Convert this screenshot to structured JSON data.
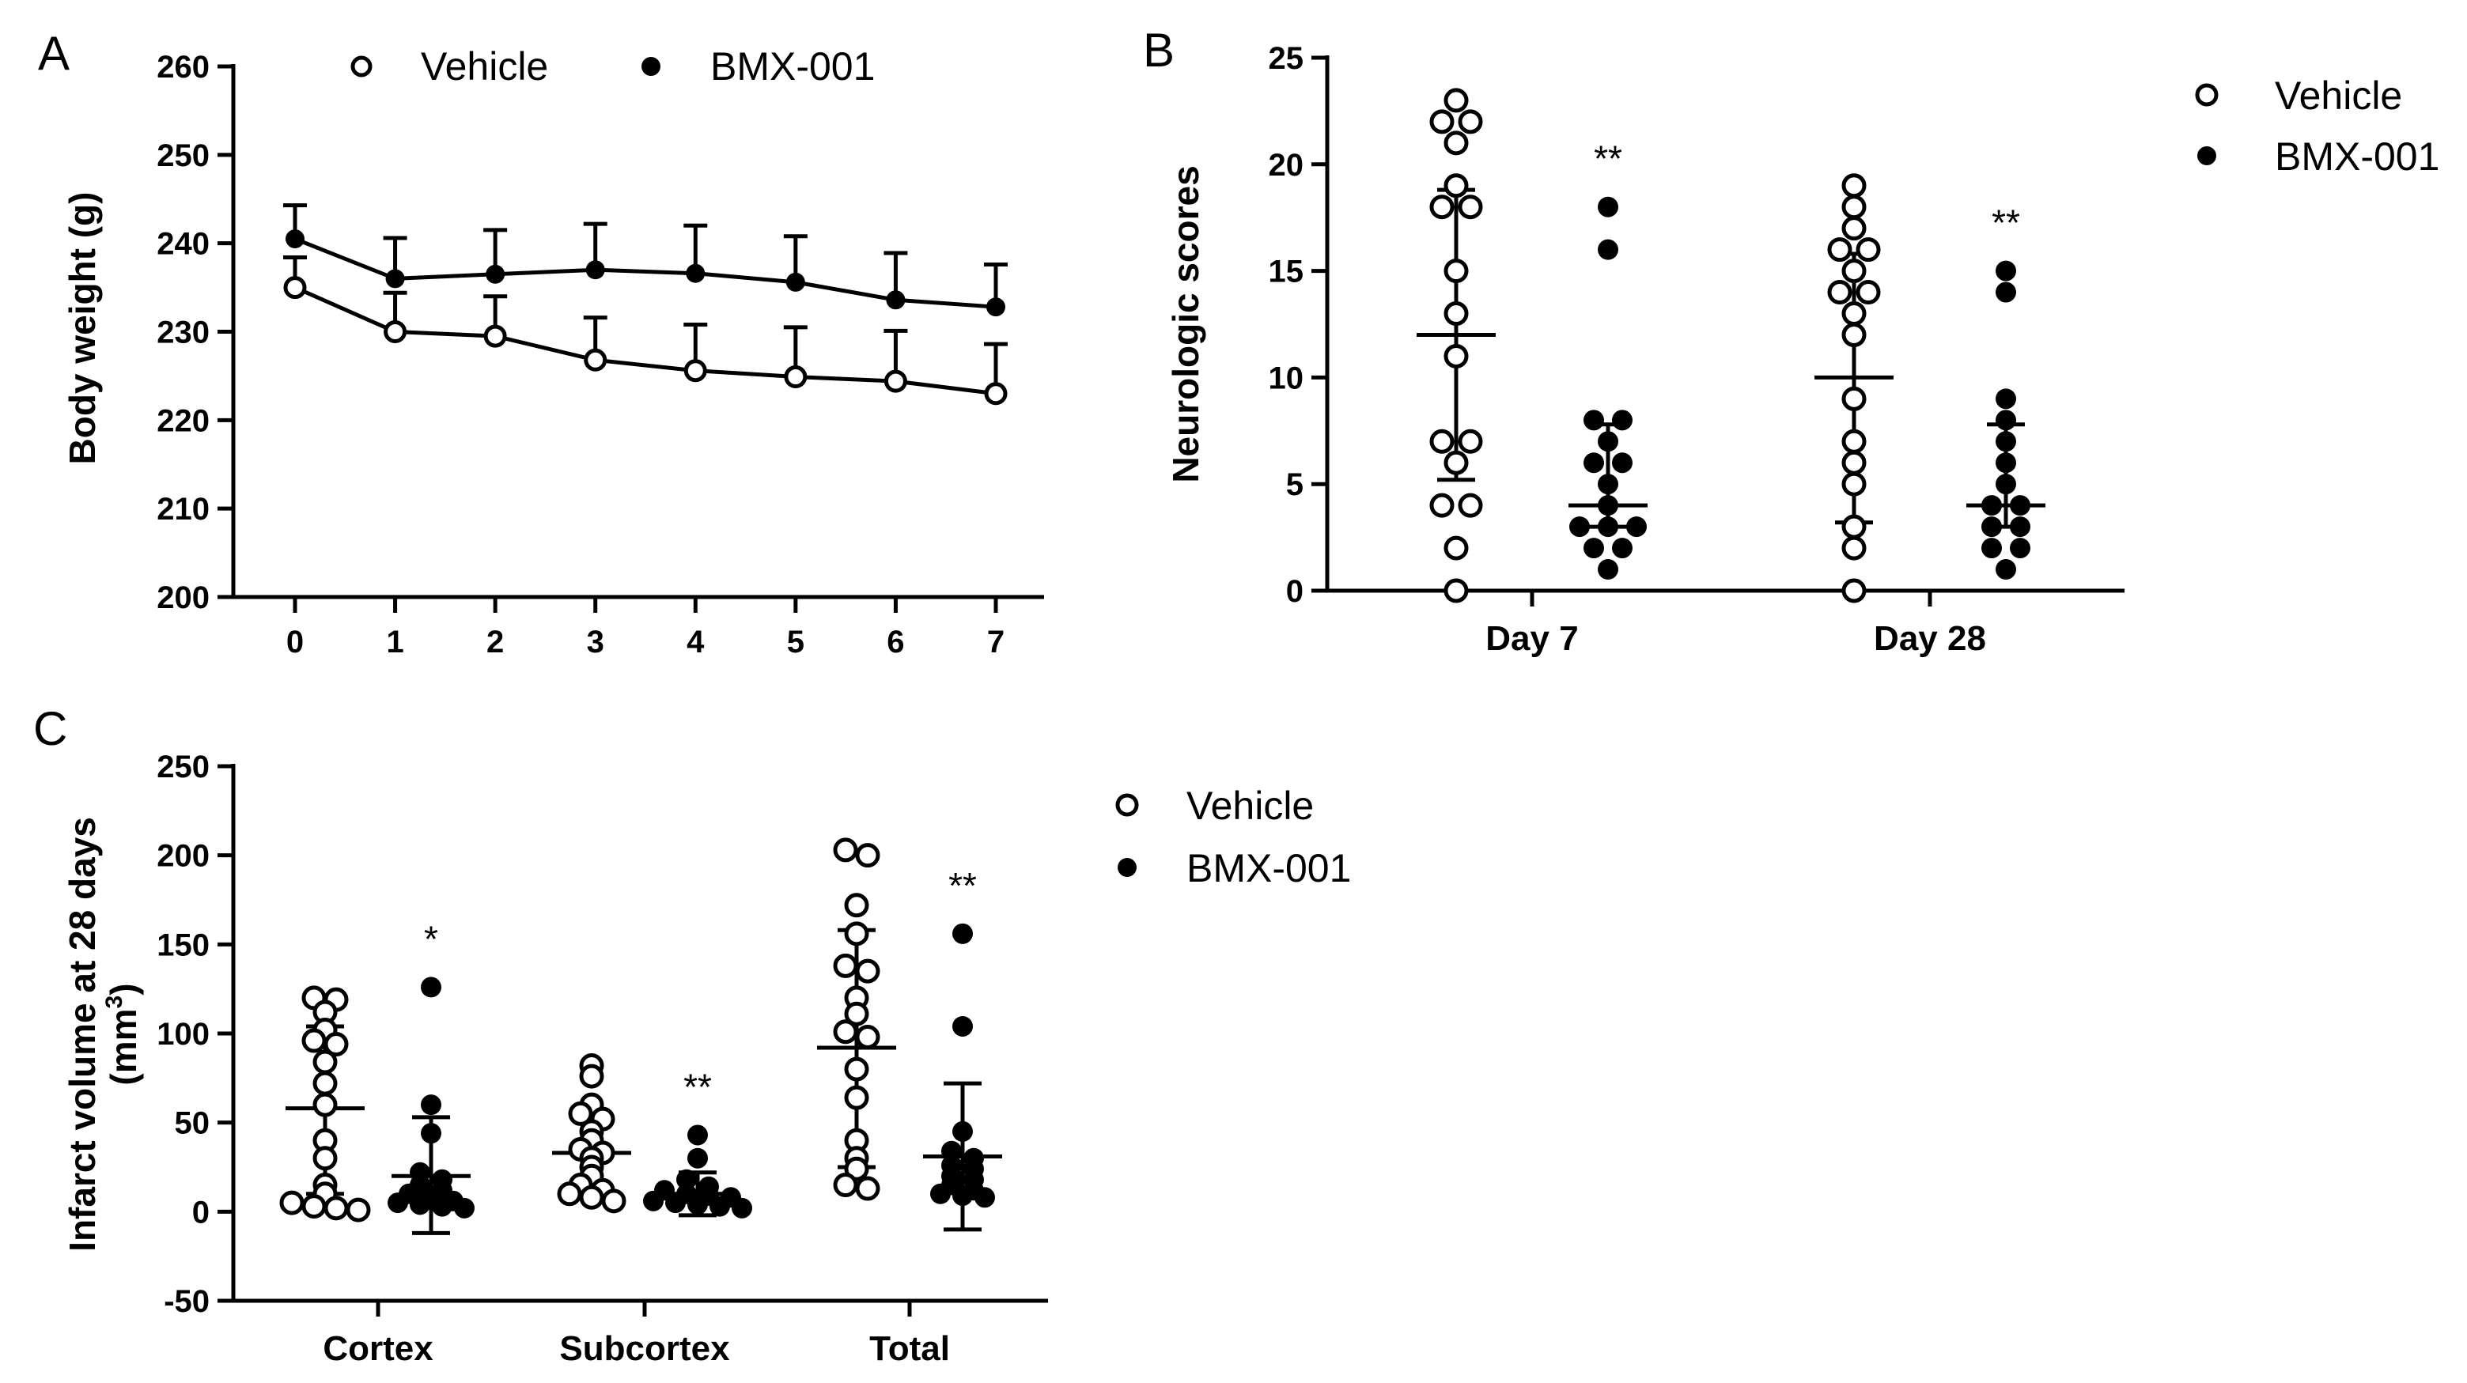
{
  "figure": {
    "panel_labels": [
      "A",
      "B",
      "C"
    ]
  },
  "chart_data": [
    {
      "panel": "A",
      "type": "line",
      "xlabel": "",
      "ylabel": "Body weight (g)",
      "x": [
        0,
        1,
        2,
        3,
        4,
        5,
        6,
        7
      ],
      "xlim": [
        0,
        7
      ],
      "ylim": [
        200,
        260
      ],
      "yticks": [
        200,
        210,
        220,
        230,
        240,
        250,
        260
      ],
      "grid": false,
      "legend_position": "top",
      "series": [
        {
          "name": "Vehicle",
          "marker": "open-circle",
          "values": [
            235.0,
            230.0,
            229.5,
            226.8,
            225.6,
            224.9,
            224.4,
            223.0
          ],
          "error": [
            3.4,
            4.4,
            4.5,
            4.8,
            5.2,
            5.6,
            5.7,
            5.6
          ]
        },
        {
          "name": "BMX-001",
          "marker": "filled-circle",
          "values": [
            240.5,
            236.0,
            236.5,
            237.0,
            236.6,
            235.6,
            233.6,
            232.8
          ],
          "error": [
            3.8,
            4.6,
            5.0,
            5.2,
            5.4,
            5.2,
            5.3,
            4.8
          ]
        }
      ]
    },
    {
      "panel": "B",
      "type": "scatter",
      "xlabel": "",
      "ylabel": "Neurologic scores",
      "categories": [
        "Day 7",
        "Day 28"
      ],
      "ylim": [
        0,
        25
      ],
      "yticks": [
        0,
        5,
        10,
        15,
        20,
        25
      ],
      "grid": false,
      "legend_position": "right",
      "series": [
        {
          "name": "Vehicle",
          "marker": "open-circle",
          "points": [
            [
              23,
              22,
              22,
              21,
              19,
              18,
              18,
              15,
              13,
              11,
              7,
              7,
              6,
              4,
              4,
              2,
              0
            ],
            [
              19,
              18,
              17,
              16,
              16,
              15,
              14,
              14,
              13,
              12,
              9,
              7,
              6,
              5,
              3,
              2,
              0
            ]
          ],
          "mean": [
            12,
            10
          ],
          "sd_lower": [
            5.2,
            3.2
          ],
          "sd_upper": [
            18.8,
            15.8
          ]
        },
        {
          "name": "BMX-001",
          "marker": "filled-circle",
          "points": [
            [
              18,
              16,
              8,
              8,
              7,
              6,
              6,
              5,
              4,
              3,
              3,
              3,
              2,
              2,
              1
            ],
            [
              15,
              14,
              9,
              8,
              7,
              6,
              5,
              4,
              4,
              3,
              3,
              2,
              2,
              1
            ]
          ],
          "mean": [
            4,
            4
          ],
          "sd_lower": [
            3.0,
            3.0
          ],
          "sd_upper": [
            7.8,
            7.8
          ],
          "significance": [
            "**",
            "**"
          ]
        }
      ]
    },
    {
      "panel": "C",
      "type": "scatter",
      "xlabel": "",
      "ylabel_line1": "Infarct volume  at 28 days",
      "ylabel_line2": "(mm",
      "ylabel_sup": "3",
      "ylabel_close": ")",
      "categories": [
        "Cortex",
        "Subcortex",
        "Total"
      ],
      "ylim": [
        -50,
        250
      ],
      "yticks": [
        -50,
        0,
        50,
        100,
        150,
        200,
        250
      ],
      "grid": false,
      "legend_position": "right",
      "series": [
        {
          "name": "Vehicle",
          "marker": "open-circle",
          "points": [
            [
              120,
              119,
              112,
              102,
              96,
              94,
              84,
              72,
              60,
              40,
              30,
              15,
              10,
              5,
              3,
              2,
              1
            ],
            [
              82,
              76,
              60,
              55,
              52,
              45,
              40,
              35,
              33,
              30,
              25,
              20,
              15,
              12,
              10,
              8,
              6
            ],
            [
              203,
              200,
              172,
              156,
              138,
              135,
              120,
              111,
              101,
              98,
              80,
              64,
              40,
              30,
              24,
              15,
              13
            ]
          ],
          "mean": [
            58,
            33,
            92
          ],
          "sd_lower": [
            10,
            10,
            25
          ],
          "sd_upper": [
            104,
            56,
            158
          ]
        },
        {
          "name": "BMX-001",
          "marker": "filled-circle",
          "points": [
            [
              126,
              60,
              44,
              22,
              18,
              15,
              12,
              10,
              8,
              6,
              5,
              4,
              3,
              2
            ],
            [
              43,
              30,
              18,
              14,
              12,
              10,
              9,
              8,
              6,
              5,
              4,
              3,
              2
            ],
            [
              156,
              104,
              45,
              34,
              30,
              26,
              24,
              20,
              18,
              15,
              12,
              10,
              9,
              8
            ]
          ],
          "mean": [
            20,
            10,
            31
          ],
          "sd_lower": [
            -12,
            -2,
            -10
          ],
          "sd_upper": [
            53,
            22,
            72
          ],
          "significance": [
            "*",
            "**",
            "**"
          ]
        }
      ]
    }
  ]
}
